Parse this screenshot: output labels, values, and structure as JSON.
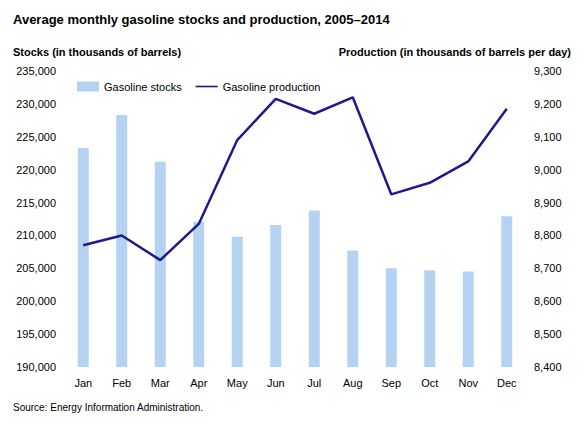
{
  "chart_data": {
    "type": "bar",
    "title": "Average monthly gasoline stocks and production, 2005–2014",
    "y_label": "Stocks (in thousands of barrels)",
    "y2_label": "Production (in thousands of barrels per day)",
    "source": "Source: Energy Information Administration.",
    "categories": [
      "Jan",
      "Feb",
      "Mar",
      "Apr",
      "May",
      "Jun",
      "Jul",
      "Aug",
      "Sep",
      "Oct",
      "Nov",
      "Dec"
    ],
    "series": [
      {
        "name": "Gasoline stocks",
        "type": "bar",
        "color": "#b4d3f3",
        "values": [
          223300,
          228300,
          221200,
          212100,
          209800,
          211600,
          213800,
          207700,
          205000,
          204700,
          204500,
          212900
        ]
      },
      {
        "name": "Gasoline production",
        "type": "line",
        "axis": "y2",
        "color": "#1f1a8c",
        "values": [
          8770,
          8800,
          8725,
          8835,
          9090,
          9215,
          9170,
          9220,
          8925,
          8960,
          9025,
          9185
        ]
      }
    ],
    "ylim": [
      190000,
      235000
    ],
    "yticks": [
      {
        "value": 190000,
        "label": "190,000"
      },
      {
        "value": 195000,
        "label": "195,000"
      },
      {
        "value": 200000,
        "label": "200,000"
      },
      {
        "value": 205000,
        "label": "205,000"
      },
      {
        "value": 210000,
        "label": "210,000"
      },
      {
        "value": 215000,
        "label": "215,000"
      },
      {
        "value": 220000,
        "label": "220,000"
      },
      {
        "value": 225000,
        "label": "225,000"
      },
      {
        "value": 230000,
        "label": "230,000"
      },
      {
        "value": 235000,
        "label": "235,000"
      }
    ],
    "y2lim": [
      8400,
      9300
    ],
    "y2ticks": [
      {
        "value": 8400,
        "label": "8,400"
      },
      {
        "value": 8500,
        "label": "8,500"
      },
      {
        "value": 8600,
        "label": "8,600"
      },
      {
        "value": 8700,
        "label": "8,700"
      },
      {
        "value": 8800,
        "label": "8,800"
      },
      {
        "value": 8900,
        "label": "8,900"
      },
      {
        "value": 9000,
        "label": "9,000"
      },
      {
        "value": 9100,
        "label": "9,100"
      },
      {
        "value": 9200,
        "label": "9,200"
      },
      {
        "value": 9300,
        "label": "9,300"
      }
    ],
    "grid": false,
    "legend": "top-left"
  }
}
